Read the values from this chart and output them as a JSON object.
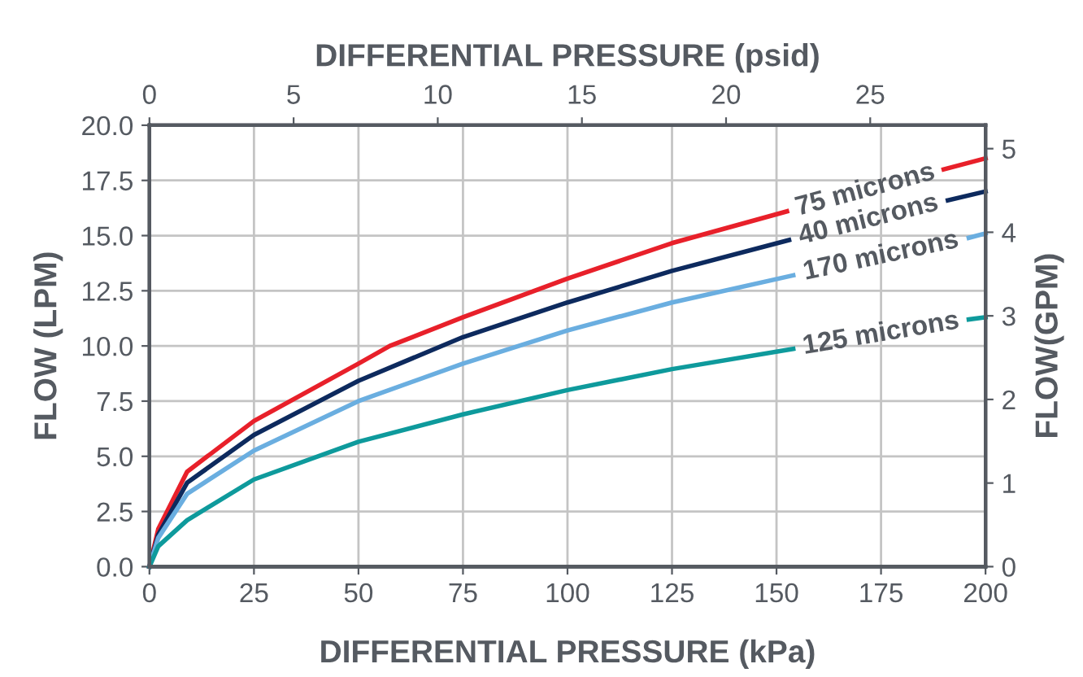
{
  "chart_data": {
    "type": "line",
    "xlabel": "DIFFERENTIAL PRESSURE (kPa)",
    "x2label": "DIFFERENTIAL PRESSURE (psid)",
    "ylabel": "FLOW (LPM)",
    "y2label": "FLOW(GPM)",
    "xlim": [
      0,
      200
    ],
    "xticks": [
      0,
      25,
      50,
      75,
      100,
      125,
      150,
      175,
      200
    ],
    "x2lim": [
      0,
      29.0
    ],
    "x2ticks": [
      0,
      5,
      10,
      15,
      20,
      25
    ],
    "ylim": [
      0,
      20
    ],
    "yticks": [
      {
        "value": 0,
        "label": "0.0"
      },
      {
        "value": 2.5,
        "label": "2.5"
      },
      {
        "value": 5,
        "label": "5.0"
      },
      {
        "value": 7.5,
        "label": "7.5"
      },
      {
        "value": 10,
        "label": "10.0"
      },
      {
        "value": 12.5,
        "label": "12.5"
      },
      {
        "value": 15,
        "label": "15.0"
      },
      {
        "value": 17.5,
        "label": "17.5"
      },
      {
        "value": 20,
        "label": "20.0"
      }
    ],
    "y2lim": [
      0,
      5.28
    ],
    "y2ticks": [
      0,
      1,
      2,
      3,
      4,
      5
    ],
    "grid": true,
    "legend": false,
    "line_style": "solid",
    "marker": "none",
    "series": [
      {
        "name": "75 microns",
        "color": "#e8202a",
        "x": [
          0,
          2.1,
          9,
          25,
          50,
          57.5,
          75,
          100,
          125,
          152.5,
          172,
          190,
          200
        ],
        "values": [
          0,
          1.7,
          4.3,
          6.6,
          9.2,
          10.0,
          11.3,
          13.05,
          14.66,
          16.1,
          null,
          18.0,
          18.5
        ]
      },
      {
        "name": "40 microns",
        "color": "#0d2a5e",
        "x": [
          0,
          2.1,
          9,
          25,
          50,
          75,
          100,
          125,
          153,
          172,
          191,
          200
        ],
        "values": [
          0,
          1.45,
          3.8,
          5.97,
          8.42,
          10.4,
          11.97,
          13.4,
          14.8,
          null,
          16.6,
          17.0
        ]
      },
      {
        "name": "170 microns",
        "color": "#6aaee0",
        "x": [
          0,
          2.1,
          9,
          25,
          50,
          75,
          100,
          125,
          154,
          175,
          196,
          200
        ],
        "values": [
          0,
          1.3,
          3.3,
          5.26,
          7.5,
          9.2,
          10.7,
          11.97,
          13.2,
          null,
          14.9,
          15.1
        ]
      },
      {
        "name": "125 microns",
        "color": "#0e9a9c",
        "x": [
          0,
          2.1,
          9,
          25,
          50,
          75,
          100,
          125,
          154,
          175,
          196,
          200
        ],
        "values": [
          0,
          0.92,
          2.1,
          3.95,
          5.66,
          6.9,
          8.0,
          8.95,
          9.87,
          null,
          11.2,
          11.3
        ]
      }
    ]
  }
}
